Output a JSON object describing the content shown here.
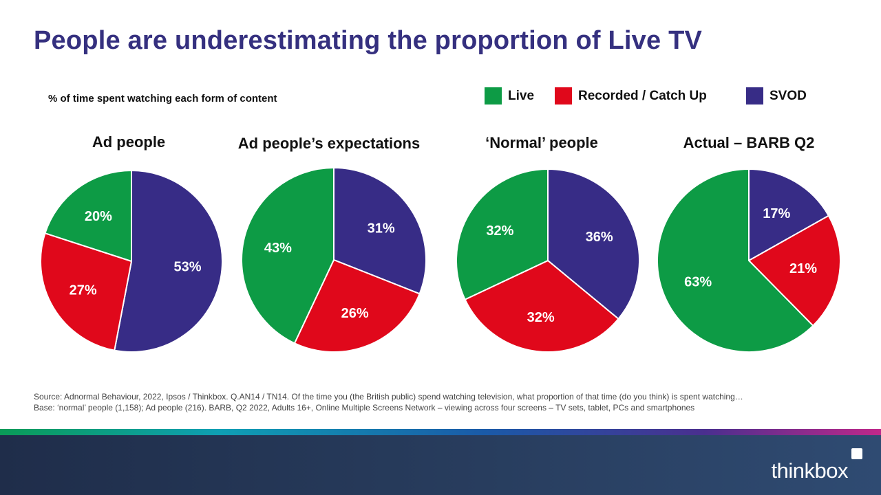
{
  "title": "People are underestimating the proportion of Live TV",
  "subtitle": "% of time spent watching each form of content",
  "colors": {
    "live": "#0d9b45",
    "recorded": "#e0081b",
    "svod": "#372c86",
    "title": "#35307f"
  },
  "legend": [
    {
      "label": "Live",
      "color": "#0d9b45"
    },
    {
      "label": "Recorded / Catch Up",
      "color": "#e0081b"
    },
    {
      "label": "SVOD",
      "color": "#372c86"
    }
  ],
  "chart_data": [
    {
      "type": "pie",
      "title": "Ad people",
      "categories": [
        "SVOD",
        "Recorded / Catch Up",
        "Live"
      ],
      "values": [
        53,
        27,
        20
      ],
      "labels": [
        "53%",
        "27%",
        "20%"
      ],
      "colors": [
        "#372c86",
        "#e0081b",
        "#0d9b45"
      ]
    },
    {
      "type": "pie",
      "title": "Ad people’s expectations",
      "categories": [
        "SVOD",
        "Recorded / Catch Up",
        "Live"
      ],
      "values": [
        31,
        26,
        43
      ],
      "labels": [
        "31%",
        "26%",
        "43%"
      ],
      "colors": [
        "#372c86",
        "#e0081b",
        "#0d9b45"
      ]
    },
    {
      "type": "pie",
      "title": "‘Normal’ people",
      "categories": [
        "SVOD",
        "Recorded / Catch Up",
        "Live"
      ],
      "values": [
        36,
        32,
        32
      ],
      "labels": [
        "36%",
        "32%",
        "32%"
      ],
      "colors": [
        "#372c86",
        "#e0081b",
        "#0d9b45"
      ]
    },
    {
      "type": "pie",
      "title": "Actual – BARB Q2",
      "categories": [
        "SVOD",
        "Recorded / Catch Up",
        "Live"
      ],
      "values": [
        17,
        21,
        63
      ],
      "labels": [
        "17%",
        "21%",
        "63%"
      ],
      "colors": [
        "#372c86",
        "#e0081b",
        "#0d9b45"
      ]
    }
  ],
  "footer": {
    "source": "Source: Adnormal Behaviour, 2022, Ipsos / Thinkbox. Q.AN14 / TN14. Of the time you (the British public) spend watching television, what proportion of that time (do you think) is spent watching…",
    "base": "Base: ‘normal’ people (1,158); Ad people (216). BARB, Q2 2022, Adults 16+, Online Multiple Screens Network – viewing across four screens – TV sets, tablet, PCs and smartphones"
  },
  "brand": "thinkbox"
}
